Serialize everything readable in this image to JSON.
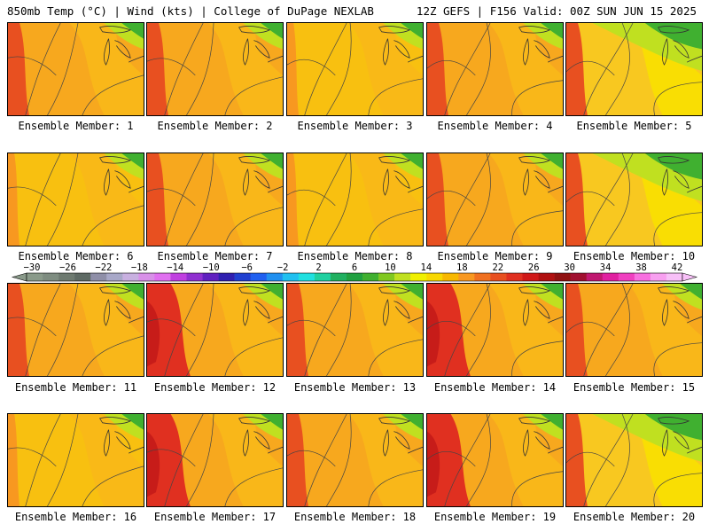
{
  "header": {
    "left": "850mb Temp (°C) | Wind (kts) | College of DuPage NEXLAB",
    "right": "12Z GEFS | F156 Valid: 00Z SUN JUN 15 2025"
  },
  "members": [
    {
      "label": "Ensemble Member: 1",
      "palette": "warm-west"
    },
    {
      "label": "Ensemble Member: 2",
      "palette": "warm-west"
    },
    {
      "label": "Ensemble Member: 3",
      "palette": "mild"
    },
    {
      "label": "Ensemble Member: 4",
      "palette": "warm-west"
    },
    {
      "label": "Ensemble Member: 5",
      "palette": "cool-north"
    },
    {
      "label": "Ensemble Member: 6",
      "palette": "mild"
    },
    {
      "label": "Ensemble Member: 7",
      "palette": "warm-west"
    },
    {
      "label": "Ensemble Member: 8",
      "palette": "mild"
    },
    {
      "label": "Ensemble Member: 9",
      "palette": "warm-west"
    },
    {
      "label": "Ensemble Member: 10",
      "palette": "cool-north"
    },
    {
      "label": "Ensemble Member: 11",
      "palette": "warm-west"
    },
    {
      "label": "Ensemble Member: 12",
      "palette": "hot-west"
    },
    {
      "label": "Ensemble Member: 13",
      "palette": "warm-west"
    },
    {
      "label": "Ensemble Member: 14",
      "palette": "hot-west"
    },
    {
      "label": "Ensemble Member: 15",
      "palette": "warm-west"
    },
    {
      "label": "Ensemble Member: 16",
      "palette": "mild"
    },
    {
      "label": "Ensemble Member: 17",
      "palette": "hot-west"
    },
    {
      "label": "Ensemble Member: 18",
      "palette": "warm-west"
    },
    {
      "label": "Ensemble Member: 19",
      "palette": "hot-west"
    },
    {
      "label": "Ensemble Member: 20",
      "palette": "cool-north"
    }
  ],
  "colorbar": {
    "labels": [
      "-30",
      "-26",
      "-22",
      "-18",
      "-14",
      "-10",
      "-6",
      "-2",
      "2",
      "6",
      "10",
      "14",
      "18",
      "22",
      "26",
      "30",
      "34",
      "38",
      "42"
    ],
    "colors": [
      "#8a9a8a",
      "#7e8c80",
      "#6e7a70",
      "#5e6a64",
      "#8f8fa8",
      "#a8a8c8",
      "#c8b0e0",
      "#d890e8",
      "#e070f0",
      "#c040e0",
      "#9030d0",
      "#6020c0",
      "#3020b0",
      "#2040d0",
      "#2060f0",
      "#2090f0",
      "#20c0f0",
      "#20e0e0",
      "#20d0a0",
      "#20b060",
      "#20a040",
      "#40b030",
      "#80c820",
      "#c0e020",
      "#f0f000",
      "#f8d800",
      "#f8b800",
      "#f89820",
      "#f07020",
      "#e85020",
      "#e03020",
      "#d01818",
      "#b01010",
      "#901010",
      "#a01030",
      "#c01870",
      "#e020a0",
      "#f040c0",
      "#f870e0",
      "#f8a0f0",
      "#f8c0f8"
    ]
  }
}
